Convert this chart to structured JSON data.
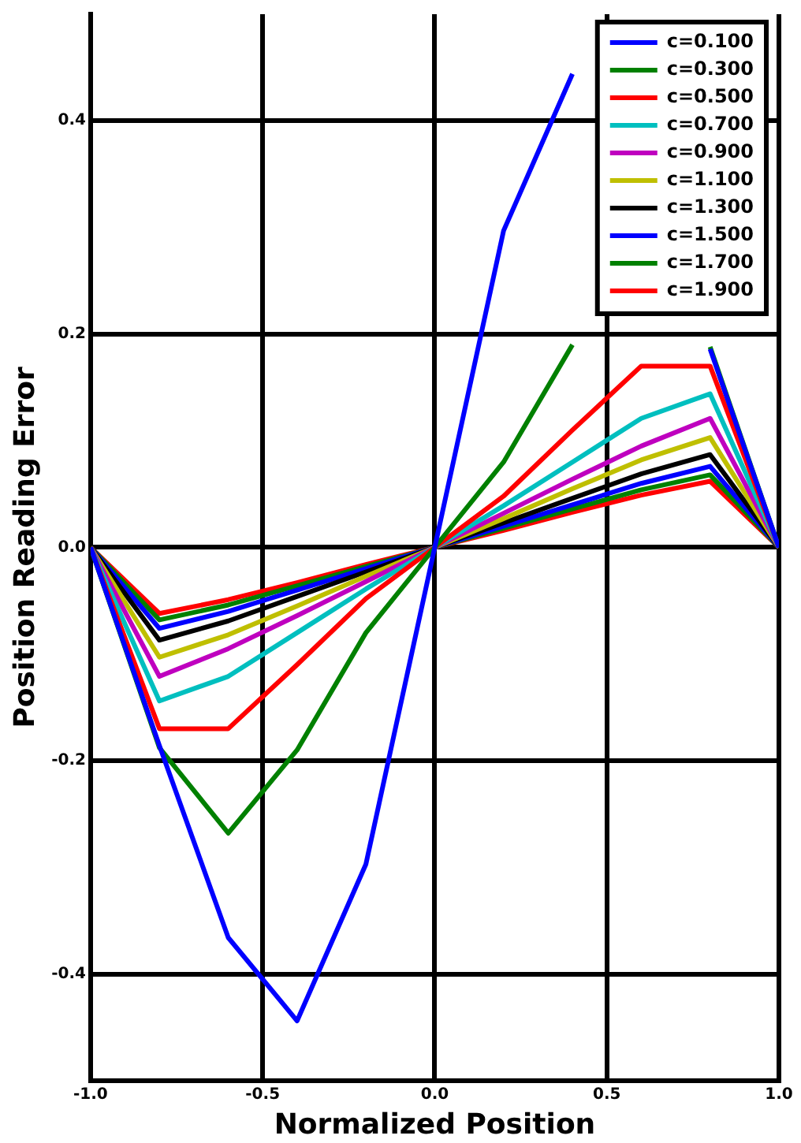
{
  "chart_data": {
    "type": "line",
    "xlabel": "Normalized Position",
    "ylabel": "Position Reading Error",
    "x": [
      -1,
      -0.8,
      -0.6,
      -0.4,
      -0.2,
      0,
      0.2,
      0.4,
      0.6,
      0.8,
      1
    ],
    "xlim": [
      -1,
      1
    ],
    "ylim": [
      -0.5,
      0.5
    ],
    "xticks": [
      {
        "value": -1,
        "label": "-1.0"
      },
      -0.5,
      {
        "value": 0,
        "label": "0.0"
      },
      0.5,
      {
        "value": 1,
        "label": "1.0"
      }
    ],
    "yticks": [
      -0.4,
      -0.2,
      {
        "value": 0,
        "label": "0.0"
      },
      0.2,
      0.4
    ],
    "grid": true,
    "legend": "top right",
    "marker": "none",
    "line_style": "solid",
    "series": [
      {
        "name": "c=0.100",
        "color": "#0000ff",
        "values": [
          0,
          -0.186,
          -0.366,
          -0.444,
          -0.297,
          0,
          0.297,
          0.444,
          null,
          0.186,
          0
        ]
      },
      {
        "name": "c=0.300",
        "color": "#008000",
        "values": [
          0,
          -0.188,
          -0.268,
          -0.19,
          -0.08,
          0,
          0.08,
          0.19,
          null,
          0.188,
          0
        ]
      },
      {
        "name": "c=0.500",
        "color": "#ff0000",
        "values": [
          0,
          -0.17,
          -0.17,
          -0.11,
          -0.048,
          0,
          0.048,
          0.11,
          0.17,
          0.17,
          0
        ]
      },
      {
        "name": "c=0.700",
        "color": "#00bfbf",
        "values": [
          0,
          -0.144,
          -0.121,
          -0.08,
          -0.039,
          0,
          0.039,
          0.08,
          0.121,
          0.144,
          0
        ]
      },
      {
        "name": "c=0.900",
        "color": "#bf00bf",
        "values": [
          0,
          -0.121,
          -0.095,
          -0.064,
          -0.032,
          0,
          0.032,
          0.064,
          0.095,
          0.121,
          0
        ]
      },
      {
        "name": "c=1.100",
        "color": "#bfbf00",
        "values": [
          0,
          -0.103,
          -0.082,
          -0.055,
          -0.027,
          0,
          0.027,
          0.055,
          0.082,
          0.103,
          0
        ]
      },
      {
        "name": "c=1.300",
        "color": "#000000",
        "values": [
          0,
          -0.087,
          -0.069,
          -0.046,
          -0.023,
          0,
          0.023,
          0.046,
          0.069,
          0.087,
          0
        ]
      },
      {
        "name": "c=1.500",
        "color": "#0000ff",
        "values": [
          0,
          -0.076,
          -0.06,
          -0.04,
          -0.02,
          0,
          0.02,
          0.04,
          0.06,
          0.076,
          0
        ]
      },
      {
        "name": "c=1.700",
        "color": "#008000",
        "values": [
          0,
          -0.068,
          -0.054,
          -0.036,
          -0.018,
          0,
          0.018,
          0.036,
          0.054,
          0.068,
          0
        ]
      },
      {
        "name": "c=1.900",
        "color": "#ff0000",
        "values": [
          0,
          -0.062,
          -0.049,
          -0.033,
          -0.016,
          0,
          0.016,
          0.033,
          0.049,
          0.062,
          0
        ]
      }
    ]
  }
}
